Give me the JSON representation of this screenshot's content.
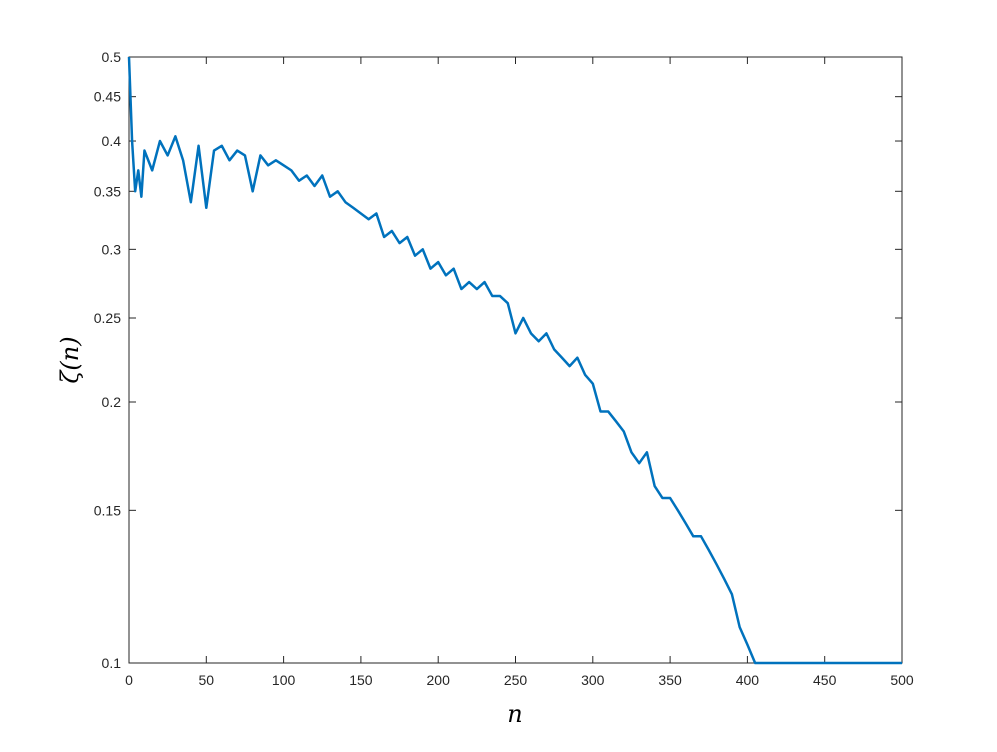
{
  "chart_data": {
    "type": "line",
    "xlabel": "n",
    "ylabel": "ζ(n)",
    "x": [
      0,
      2,
      4,
      6,
      8,
      10,
      15,
      20,
      25,
      30,
      35,
      40,
      45,
      50,
      55,
      60,
      65,
      70,
      75,
      80,
      85,
      90,
      95,
      100,
      105,
      110,
      115,
      120,
      125,
      130,
      135,
      140,
      145,
      150,
      155,
      160,
      165,
      170,
      175,
      180,
      185,
      190,
      195,
      200,
      205,
      210,
      215,
      220,
      225,
      230,
      235,
      240,
      245,
      250,
      255,
      260,
      265,
      270,
      275,
      280,
      285,
      290,
      295,
      300,
      305,
      310,
      315,
      320,
      325,
      330,
      335,
      340,
      345,
      350,
      355,
      360,
      365,
      370,
      375,
      380,
      385,
      390,
      395,
      400,
      405,
      410,
      415,
      500
    ],
    "values": [
      0.5,
      0.4,
      0.35,
      0.37,
      0.345,
      0.39,
      0.37,
      0.4,
      0.385,
      0.405,
      0.38,
      0.34,
      0.395,
      0.335,
      0.39,
      0.395,
      0.38,
      0.39,
      0.385,
      0.35,
      0.385,
      0.375,
      0.38,
      0.375,
      0.37,
      0.36,
      0.365,
      0.355,
      0.365,
      0.345,
      0.35,
      0.34,
      0.335,
      0.33,
      0.325,
      0.33,
      0.31,
      0.315,
      0.305,
      0.31,
      0.295,
      0.3,
      0.285,
      0.29,
      0.28,
      0.285,
      0.27,
      0.275,
      0.27,
      0.275,
      0.265,
      0.265,
      0.26,
      0.24,
      0.25,
      0.24,
      0.235,
      0.24,
      0.23,
      0.225,
      0.22,
      0.225,
      0.215,
      0.21,
      0.195,
      0.195,
      0.19,
      0.185,
      0.175,
      0.17,
      0.175,
      0.16,
      0.155,
      0.155,
      0.15,
      0.145,
      0.14,
      0.14,
      0.135,
      0.13,
      0.125,
      0.12,
      0.11,
      0.105,
      0.1,
      0.1,
      0.1,
      0.1
    ],
    "color": "#0072bd",
    "xlim": [
      0,
      500
    ],
    "ylim": [
      0.1,
      0.5
    ],
    "yscale": "log",
    "xticks": [
      0,
      50,
      100,
      150,
      200,
      250,
      300,
      350,
      400,
      450,
      500
    ],
    "yticks": [
      0.1,
      0.15,
      0.2,
      0.25,
      0.3,
      0.35,
      0.4,
      0.45,
      0.5
    ]
  }
}
